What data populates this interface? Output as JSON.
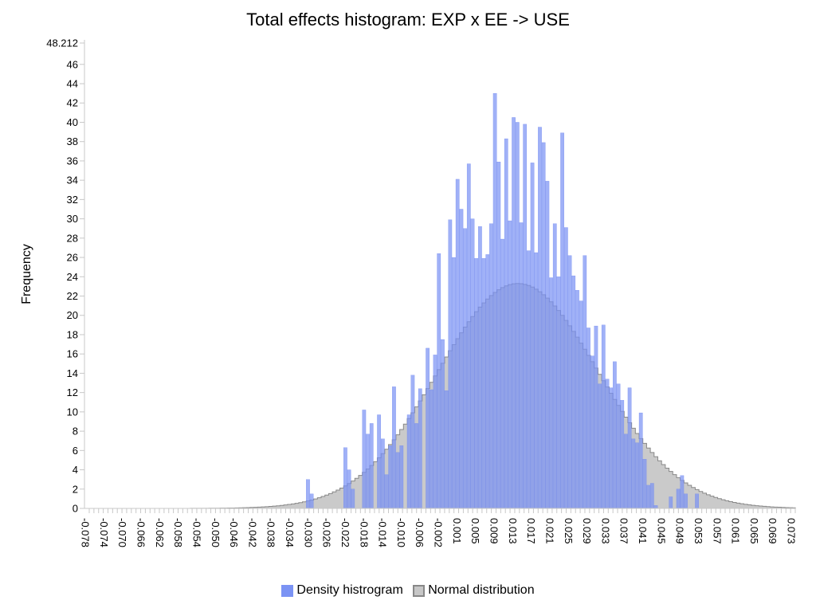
{
  "chart_data": {
    "type": "bar",
    "title": "Total effects histogram: EXP x EE -> USE",
    "xlabel": "",
    "ylabel": "Frequency",
    "ylim": [
      0,
      48.212
    ],
    "y_ticks": [
      "0",
      "2",
      "4",
      "6",
      "8",
      "10",
      "12",
      "14",
      "16",
      "18",
      "20",
      "22",
      "24",
      "26",
      "28",
      "30",
      "32",
      "34",
      "36",
      "38",
      "40",
      "42",
      "44",
      "46",
      "48.212"
    ],
    "x_tick_labels": [
      "-0.078",
      "-0.074",
      "-0.070",
      "-0.066",
      "-0.062",
      "-0.058",
      "-0.054",
      "-0.050",
      "-0.046",
      "-0.042",
      "-0.038",
      "-0.034",
      "-0.030",
      "-0.026",
      "-0.022",
      "-0.018",
      "-0.014",
      "-0.010",
      "-0.006",
      "-0.002",
      "0.001",
      "0.005",
      "0.009",
      "0.013",
      "0.017",
      "0.021",
      "0.025",
      "0.029",
      "0.033",
      "0.037",
      "0.041",
      "0.045",
      "0.049",
      "0.053",
      "0.057",
      "0.061",
      "0.065",
      "0.069",
      "0.073"
    ],
    "x_range": [
      -0.078,
      0.073
    ],
    "grid": false,
    "legend_placement": "bottom-center",
    "colors": {
      "histogram": "#7b93f4",
      "normal": "#c7c7c7",
      "normal_line": "#888888",
      "overlap": "#5a6fc7"
    },
    "series": [
      {
        "name": "Density histrogram",
        "bin_start": -0.0316,
        "bin_width": 0.0008,
        "values": [
          3.0,
          1.5,
          0,
          0,
          0,
          0,
          0,
          0,
          0,
          0,
          6.3,
          4.0,
          2.0,
          0,
          0,
          10.2,
          7.7,
          8.8,
          0,
          9.7,
          7.2,
          3.5,
          6.5,
          12.6,
          5.8,
          6.5,
          0,
          9.7,
          13.8,
          8.8,
          12.4,
          0,
          16.6,
          12.3,
          15.9,
          26.4,
          17.5,
          12.2,
          29.9,
          26.0,
          34.1,
          31.0,
          29.0,
          35.7,
          30.0,
          25.9,
          29.2,
          25.9,
          26.3,
          29.5,
          43.0,
          35.9,
          27.9,
          38.3,
          29.8,
          40.5,
          40.0,
          29.6,
          39.8,
          26.7,
          35.8,
          26.5,
          39.5,
          37.9,
          33.9,
          23.9,
          29.5,
          24.0,
          38.9,
          29.1,
          26.2,
          24.1,
          22.6,
          21.5,
          26.2,
          18.7,
          15.8,
          18.9,
          12.9,
          19.0,
          13.4,
          12.5,
          15.2,
          12.9,
          11.2,
          7.7,
          12.5,
          7.2,
          6.8,
          9.9,
          5.1,
          2.4,
          2.6,
          0.3,
          0,
          0,
          0,
          1.2,
          0,
          2.0,
          3.4,
          1.5,
          0,
          0,
          1.5
        ]
      },
      {
        "name": "Normal distribution",
        "mean": 0.0133,
        "sd": 0.0172,
        "peak": 23.3
      }
    ]
  },
  "legend": {
    "items": [
      {
        "label": "Density histrogram"
      },
      {
        "label": "Normal distribution"
      }
    ]
  }
}
